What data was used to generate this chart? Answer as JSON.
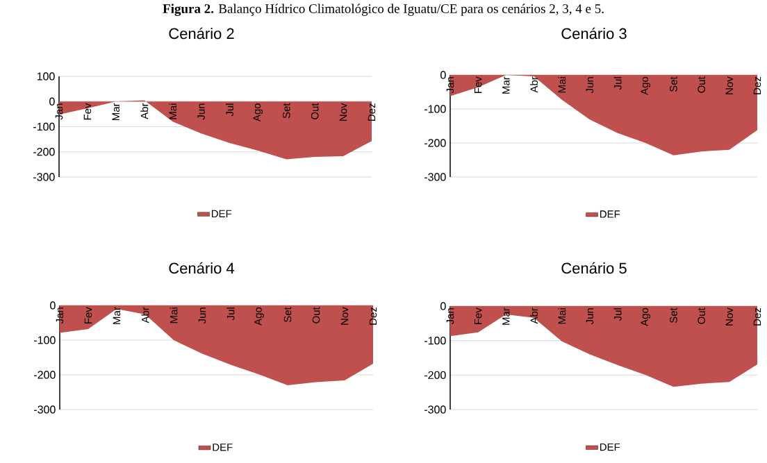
{
  "chart_data": [
    {
      "type": "area",
      "title": "Cenário 2",
      "annotations": [
        "**Figura 2.** Balanço Hídrico Climatológico de Iguatu/CE para os cenários 2, 3, 4 e 5."
      ],
      "categories": [
        "Jan",
        "Fev",
        "Mar",
        "Abr",
        "Mai",
        "Jun",
        "Jul",
        "Ago",
        "Set",
        "Out",
        "Nov",
        "Dez"
      ],
      "series": [
        {
          "name": "DEF",
          "color": "#c0504d",
          "values": [
            -52,
            -27,
            0,
            5,
            -80,
            -127,
            -165,
            -195,
            -230,
            -220,
            -217,
            -157
          ]
        }
      ],
      "ylim": [
        -300,
        100
      ],
      "yticks": [
        -300,
        -200,
        -100,
        0,
        100
      ],
      "grid": "y",
      "legend": "bottom"
    },
    {
      "type": "area",
      "title": "Cenário 3",
      "categories": [
        "Jan",
        "Fev",
        "Mar",
        "Abr",
        "Mai",
        "Jun",
        "Jul",
        "Ago",
        "Set",
        "Out",
        "Nov",
        "Dez"
      ],
      "series": [
        {
          "name": "DEF",
          "color": "#c0504d",
          "values": [
            -62,
            -36,
            0,
            -4,
            -73,
            -131,
            -171,
            -200,
            -236,
            -225,
            -220,
            -162
          ]
        }
      ],
      "ylim": [
        -300,
        0
      ],
      "yticks": [
        -300,
        -200,
        -100,
        0
      ],
      "grid": "y",
      "legend": "bottom"
    },
    {
      "type": "area",
      "title": "Cenário 4",
      "categories": [
        "Jan",
        "Fev",
        "Mar",
        "Abr",
        "Mai",
        "Jun",
        "Jul",
        "Ago",
        "Set",
        "Out",
        "Nov",
        "Dez"
      ],
      "series": [
        {
          "name": "DEF",
          "color": "#c0504d",
          "values": [
            -79,
            -68,
            -10,
            -26,
            -100,
            -139,
            -171,
            -199,
            -230,
            -221,
            -216,
            -168
          ]
        }
      ],
      "ylim": [
        -300,
        0
      ],
      "yticks": [
        -300,
        -200,
        -100,
        0
      ],
      "grid": "y",
      "legend": "bottom"
    },
    {
      "type": "area",
      "title": "Cenário 5",
      "categories": [
        "Jan",
        "Fev",
        "Mar",
        "Abr",
        "Mai",
        "Jun",
        "Jul",
        "Ago",
        "Set",
        "Out",
        "Nov",
        "Dez"
      ],
      "series": [
        {
          "name": "DEF",
          "color": "#c0504d",
          "values": [
            -87,
            -76,
            -24,
            -34,
            -102,
            -140,
            -171,
            -200,
            -234,
            -225,
            -220,
            -169
          ]
        }
      ],
      "ylim": [
        -300,
        0
      ],
      "yticks": [
        -300,
        -200,
        -100,
        0
      ],
      "grid": "y",
      "legend": "bottom"
    }
  ]
}
